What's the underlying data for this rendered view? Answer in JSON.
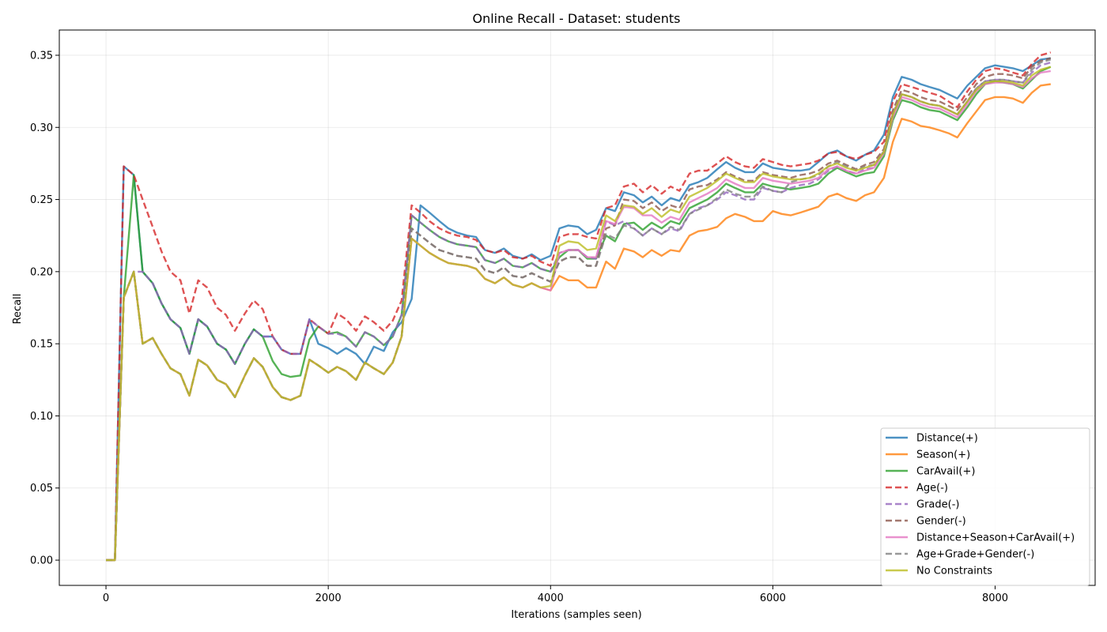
{
  "chart_data": {
    "type": "line",
    "title": "Online Recall - Dataset: students",
    "xlabel": "Iterations (samples seen)",
    "ylabel": "Recall",
    "xlim": [
      -420,
      8900
    ],
    "ylim": [
      -0.0175,
      0.3675
    ],
    "xticks": [
      0,
      2000,
      4000,
      6000,
      8000
    ],
    "xtick_labels": [
      "0",
      "2000",
      "4000",
      "6000",
      "8000"
    ],
    "yticks": [
      0.0,
      0.05,
      0.1,
      0.15,
      0.2,
      0.25,
      0.3,
      0.35
    ],
    "ytick_labels": [
      "0.00",
      "0.05",
      "0.10",
      "0.15",
      "0.20",
      "0.25",
      "0.30",
      "0.35"
    ],
    "grid": true,
    "legend_position": "lower-right",
    "x": [
      0,
      80,
      160,
      250,
      330,
      420,
      500,
      580,
      670,
      750,
      830,
      910,
      1000,
      1080,
      1160,
      1250,
      1330,
      1410,
      1500,
      1580,
      1660,
      1750,
      1830,
      1910,
      2000,
      2080,
      2160,
      2250,
      2330,
      2410,
      2500,
      2580,
      2660,
      2750,
      2830,
      2910,
      3000,
      3080,
      3160,
      3250,
      3330,
      3410,
      3500,
      3580,
      3660,
      3750,
      3830,
      3910,
      4000,
      4080,
      4160,
      4250,
      4330,
      4410,
      4500,
      4580,
      4660,
      4750,
      4830,
      4910,
      5000,
      5080,
      5160,
      5250,
      5330,
      5410,
      5500,
      5580,
      5660,
      5750,
      5830,
      5910,
      6000,
      6080,
      6160,
      6250,
      6330,
      6410,
      6500,
      6580,
      6660,
      6750,
      6830,
      6910,
      7000,
      7080,
      7160,
      7250,
      7330,
      7410,
      7500,
      7580,
      7660,
      7750,
      7830,
      7910,
      8000,
      8080,
      8160,
      8250,
      8330,
      8410,
      8500
    ],
    "series": [
      {
        "name": "Distance(+)",
        "color": "#1f77b4",
        "dash": "solid",
        "values": [
          0.0,
          0.0,
          0.273,
          0.267,
          0.2,
          0.192,
          0.178,
          0.167,
          0.161,
          0.143,
          0.167,
          0.162,
          0.15,
          0.146,
          0.136,
          0.15,
          0.16,
          0.155,
          0.155,
          0.146,
          0.143,
          0.143,
          0.167,
          0.15,
          0.147,
          0.143,
          0.147,
          0.143,
          0.136,
          0.148,
          0.145,
          0.158,
          0.165,
          0.181,
          0.246,
          0.241,
          0.235,
          0.23,
          0.227,
          0.225,
          0.224,
          0.215,
          0.213,
          0.216,
          0.211,
          0.209,
          0.212,
          0.208,
          0.211,
          0.23,
          0.232,
          0.231,
          0.226,
          0.229,
          0.244,
          0.242,
          0.255,
          0.253,
          0.248,
          0.252,
          0.246,
          0.251,
          0.249,
          0.26,
          0.262,
          0.265,
          0.271,
          0.276,
          0.272,
          0.269,
          0.269,
          0.275,
          0.272,
          0.271,
          0.27,
          0.27,
          0.271,
          0.276,
          0.282,
          0.284,
          0.28,
          0.277,
          0.281,
          0.284,
          0.295,
          0.321,
          0.335,
          0.333,
          0.33,
          0.328,
          0.326,
          0.323,
          0.32,
          0.329,
          0.335,
          0.341,
          0.343,
          0.342,
          0.341,
          0.339,
          0.343,
          0.347,
          0.348
        ]
      },
      {
        "name": "Season(+)",
        "color": "#ff7f0e",
        "dash": "solid",
        "values": [
          0.0,
          0.0,
          0.182,
          0.2,
          0.15,
          0.154,
          0.143,
          0.133,
          0.129,
          0.114,
          0.139,
          0.135,
          0.125,
          0.122,
          0.113,
          0.128,
          0.14,
          0.134,
          0.12,
          0.113,
          0.111,
          0.114,
          0.139,
          0.135,
          0.13,
          0.134,
          0.131,
          0.125,
          0.137,
          0.133,
          0.129,
          0.137,
          0.155,
          0.223,
          0.218,
          0.213,
          0.209,
          0.206,
          0.205,
          0.204,
          0.202,
          0.195,
          0.192,
          0.196,
          0.191,
          0.189,
          0.192,
          0.189,
          0.187,
          0.197,
          0.194,
          0.194,
          0.189,
          0.189,
          0.207,
          0.202,
          0.216,
          0.214,
          0.21,
          0.215,
          0.211,
          0.215,
          0.214,
          0.225,
          0.228,
          0.229,
          0.231,
          0.237,
          0.24,
          0.238,
          0.235,
          0.235,
          0.242,
          0.24,
          0.239,
          0.241,
          0.243,
          0.245,
          0.252,
          0.254,
          0.251,
          0.249,
          0.253,
          0.255,
          0.265,
          0.29,
          0.306,
          0.304,
          0.301,
          0.3,
          0.298,
          0.296,
          0.293,
          0.303,
          0.311,
          0.319,
          0.321,
          0.321,
          0.32,
          0.317,
          0.324,
          0.329,
          0.33
        ]
      },
      {
        "name": "CarAvail(+)",
        "color": "#2ca02c",
        "dash": "solid",
        "values": [
          0.0,
          0.0,
          0.182,
          0.267,
          0.2,
          0.192,
          0.178,
          0.167,
          0.161,
          0.143,
          0.167,
          0.162,
          0.15,
          0.146,
          0.136,
          0.15,
          0.16,
          0.155,
          0.138,
          0.129,
          0.127,
          0.128,
          0.153,
          0.162,
          0.157,
          0.158,
          0.155,
          0.148,
          0.158,
          0.155,
          0.149,
          0.155,
          0.17,
          0.239,
          0.234,
          0.229,
          0.224,
          0.221,
          0.219,
          0.218,
          0.217,
          0.208,
          0.206,
          0.209,
          0.204,
          0.203,
          0.206,
          0.202,
          0.2,
          0.21,
          0.215,
          0.215,
          0.209,
          0.209,
          0.225,
          0.221,
          0.233,
          0.234,
          0.229,
          0.234,
          0.23,
          0.235,
          0.233,
          0.244,
          0.247,
          0.25,
          0.255,
          0.261,
          0.258,
          0.255,
          0.255,
          0.261,
          0.259,
          0.258,
          0.257,
          0.258,
          0.259,
          0.261,
          0.268,
          0.272,
          0.269,
          0.266,
          0.268,
          0.269,
          0.28,
          0.305,
          0.319,
          0.317,
          0.314,
          0.312,
          0.311,
          0.308,
          0.305,
          0.314,
          0.323,
          0.33,
          0.332,
          0.331,
          0.33,
          0.327,
          0.333,
          0.339,
          0.342
        ]
      },
      {
        "name": "Age(-)",
        "color": "#d62728",
        "dash": "dashed",
        "values": [
          0.0,
          0.0,
          0.273,
          0.267,
          0.25,
          0.231,
          0.214,
          0.2,
          0.194,
          0.171,
          0.194,
          0.189,
          0.175,
          0.17,
          0.159,
          0.171,
          0.18,
          0.174,
          0.155,
          0.146,
          0.143,
          0.143,
          0.167,
          0.162,
          0.157,
          0.171,
          0.167,
          0.159,
          0.169,
          0.165,
          0.159,
          0.166,
          0.18,
          0.246,
          0.241,
          0.235,
          0.23,
          0.227,
          0.225,
          0.224,
          0.222,
          0.215,
          0.213,
          0.215,
          0.21,
          0.209,
          0.211,
          0.207,
          0.204,
          0.224,
          0.226,
          0.226,
          0.224,
          0.223,
          0.244,
          0.246,
          0.259,
          0.261,
          0.255,
          0.26,
          0.254,
          0.259,
          0.256,
          0.268,
          0.27,
          0.27,
          0.275,
          0.28,
          0.276,
          0.273,
          0.272,
          0.278,
          0.276,
          0.274,
          0.273,
          0.274,
          0.275,
          0.277,
          0.282,
          0.283,
          0.28,
          0.278,
          0.281,
          0.283,
          0.29,
          0.318,
          0.33,
          0.328,
          0.326,
          0.324,
          0.322,
          0.318,
          0.314,
          0.325,
          0.333,
          0.339,
          0.341,
          0.34,
          0.338,
          0.336,
          0.344,
          0.35,
          0.352
        ]
      },
      {
        "name": "Grade(-)",
        "color": "#9467bd",
        "dash": "dashed",
        "values": [
          0.0,
          0.0,
          0.182,
          0.2,
          0.2,
          0.192,
          0.178,
          0.167,
          0.161,
          0.143,
          0.167,
          0.162,
          0.15,
          0.146,
          0.136,
          0.15,
          0.16,
          0.155,
          0.155,
          0.146,
          0.143,
          0.143,
          0.167,
          0.162,
          0.157,
          0.157,
          0.155,
          0.148,
          0.158,
          0.155,
          0.149,
          0.155,
          0.17,
          0.239,
          0.234,
          0.229,
          0.224,
          0.221,
          0.219,
          0.218,
          0.217,
          0.208,
          0.206,
          0.209,
          0.204,
          0.203,
          0.206,
          0.202,
          0.2,
          0.213,
          0.215,
          0.215,
          0.21,
          0.209,
          0.235,
          0.232,
          0.235,
          0.23,
          0.225,
          0.23,
          0.226,
          0.23,
          0.228,
          0.24,
          0.244,
          0.246,
          0.25,
          0.255,
          0.253,
          0.25,
          0.25,
          0.258,
          0.256,
          0.255,
          0.258,
          0.26,
          0.261,
          0.264,
          0.27,
          0.273,
          0.27,
          0.268,
          0.271,
          0.272,
          0.284,
          0.31,
          0.323,
          0.321,
          0.318,
          0.316,
          0.315,
          0.312,
          0.309,
          0.318,
          0.327,
          0.332,
          0.333,
          0.333,
          0.332,
          0.331,
          0.338,
          0.343,
          0.345
        ]
      },
      {
        "name": "Gender(-)",
        "color": "#8c564b",
        "dash": "dashed",
        "values": [
          0.0,
          0.0,
          0.182,
          0.2,
          0.15,
          0.154,
          0.143,
          0.133,
          0.129,
          0.114,
          0.139,
          0.135,
          0.125,
          0.122,
          0.113,
          0.128,
          0.14,
          0.134,
          0.12,
          0.113,
          0.111,
          0.114,
          0.139,
          0.135,
          0.13,
          0.134,
          0.131,
          0.125,
          0.137,
          0.133,
          0.129,
          0.137,
          0.155,
          0.23,
          0.225,
          0.22,
          0.215,
          0.213,
          0.211,
          0.21,
          0.209,
          0.201,
          0.199,
          0.203,
          0.197,
          0.196,
          0.199,
          0.196,
          0.193,
          0.207,
          0.21,
          0.21,
          0.204,
          0.204,
          0.23,
          0.232,
          0.25,
          0.249,
          0.244,
          0.248,
          0.242,
          0.246,
          0.244,
          0.257,
          0.259,
          0.26,
          0.264,
          0.269,
          0.266,
          0.263,
          0.263,
          0.269,
          0.267,
          0.266,
          0.265,
          0.267,
          0.268,
          0.27,
          0.275,
          0.277,
          0.274,
          0.271,
          0.274,
          0.276,
          0.285,
          0.312,
          0.326,
          0.324,
          0.321,
          0.319,
          0.318,
          0.315,
          0.312,
          0.321,
          0.33,
          0.335,
          0.337,
          0.337,
          0.336,
          0.334,
          0.342,
          0.346,
          0.348
        ]
      },
      {
        "name": "Distance+Season+CarAvail(+)",
        "color": "#e377c2",
        "dash": "solid",
        "values": [
          0.0,
          0.0,
          0.182,
          0.2,
          0.15,
          0.154,
          0.143,
          0.133,
          0.129,
          0.114,
          0.139,
          0.135,
          0.125,
          0.122,
          0.113,
          0.128,
          0.14,
          0.134,
          0.12,
          0.113,
          0.111,
          0.114,
          0.139,
          0.135,
          0.13,
          0.134,
          0.131,
          0.125,
          0.137,
          0.133,
          0.129,
          0.137,
          0.155,
          0.223,
          0.218,
          0.213,
          0.209,
          0.206,
          0.205,
          0.204,
          0.202,
          0.195,
          0.192,
          0.196,
          0.191,
          0.189,
          0.192,
          0.189,
          0.187,
          0.213,
          0.215,
          0.215,
          0.21,
          0.21,
          0.235,
          0.233,
          0.245,
          0.244,
          0.239,
          0.239,
          0.234,
          0.238,
          0.236,
          0.248,
          0.251,
          0.254,
          0.258,
          0.264,
          0.261,
          0.258,
          0.258,
          0.265,
          0.263,
          0.262,
          0.261,
          0.262,
          0.263,
          0.265,
          0.271,
          0.273,
          0.27,
          0.268,
          0.27,
          0.272,
          0.282,
          0.307,
          0.321,
          0.319,
          0.316,
          0.314,
          0.313,
          0.31,
          0.307,
          0.316,
          0.325,
          0.33,
          0.331,
          0.331,
          0.33,
          0.328,
          0.334,
          0.338,
          0.339
        ]
      },
      {
        "name": "Age+Grade+Gender(-)",
        "color": "#7f7f7f",
        "dash": "dashed",
        "values": [
          0.0,
          0.0,
          0.182,
          0.2,
          0.15,
          0.154,
          0.143,
          0.133,
          0.129,
          0.114,
          0.139,
          0.135,
          0.125,
          0.122,
          0.113,
          0.128,
          0.14,
          0.134,
          0.12,
          0.113,
          0.111,
          0.114,
          0.139,
          0.135,
          0.13,
          0.134,
          0.131,
          0.125,
          0.137,
          0.133,
          0.129,
          0.137,
          0.155,
          0.23,
          0.225,
          0.22,
          0.215,
          0.213,
          0.211,
          0.21,
          0.209,
          0.201,
          0.199,
          0.203,
          0.197,
          0.196,
          0.199,
          0.196,
          0.193,
          0.207,
          0.21,
          0.21,
          0.204,
          0.204,
          0.226,
          0.223,
          0.232,
          0.23,
          0.225,
          0.23,
          0.226,
          0.231,
          0.229,
          0.24,
          0.243,
          0.246,
          0.251,
          0.257,
          0.254,
          0.252,
          0.252,
          0.259,
          0.256,
          0.255,
          0.262,
          0.264,
          0.265,
          0.267,
          0.273,
          0.276,
          0.273,
          0.27,
          0.273,
          0.274,
          0.283,
          0.309,
          0.323,
          0.321,
          0.318,
          0.316,
          0.315,
          0.312,
          0.309,
          0.318,
          0.327,
          0.332,
          0.333,
          0.333,
          0.332,
          0.331,
          0.34,
          0.345,
          0.347
        ]
      },
      {
        "name": "No Constraints",
        "color": "#bcbd22",
        "dash": "solid",
        "values": [
          0.0,
          0.0,
          0.182,
          0.2,
          0.15,
          0.154,
          0.143,
          0.133,
          0.129,
          0.114,
          0.139,
          0.135,
          0.125,
          0.122,
          0.113,
          0.128,
          0.14,
          0.134,
          0.12,
          0.113,
          0.111,
          0.114,
          0.139,
          0.135,
          0.13,
          0.134,
          0.131,
          0.125,
          0.137,
          0.133,
          0.129,
          0.137,
          0.155,
          0.223,
          0.218,
          0.213,
          0.209,
          0.206,
          0.205,
          0.204,
          0.202,
          0.195,
          0.192,
          0.196,
          0.191,
          0.189,
          0.192,
          0.189,
          0.19,
          0.218,
          0.221,
          0.22,
          0.215,
          0.216,
          0.239,
          0.235,
          0.246,
          0.245,
          0.24,
          0.244,
          0.238,
          0.243,
          0.241,
          0.252,
          0.255,
          0.258,
          0.263,
          0.268,
          0.265,
          0.262,
          0.262,
          0.268,
          0.266,
          0.265,
          0.264,
          0.264,
          0.265,
          0.268,
          0.273,
          0.275,
          0.272,
          0.27,
          0.272,
          0.274,
          0.283,
          0.309,
          0.323,
          0.321,
          0.318,
          0.316,
          0.315,
          0.312,
          0.309,
          0.318,
          0.326,
          0.331,
          0.332,
          0.332,
          0.331,
          0.329,
          0.336,
          0.34,
          0.342
        ]
      }
    ]
  }
}
